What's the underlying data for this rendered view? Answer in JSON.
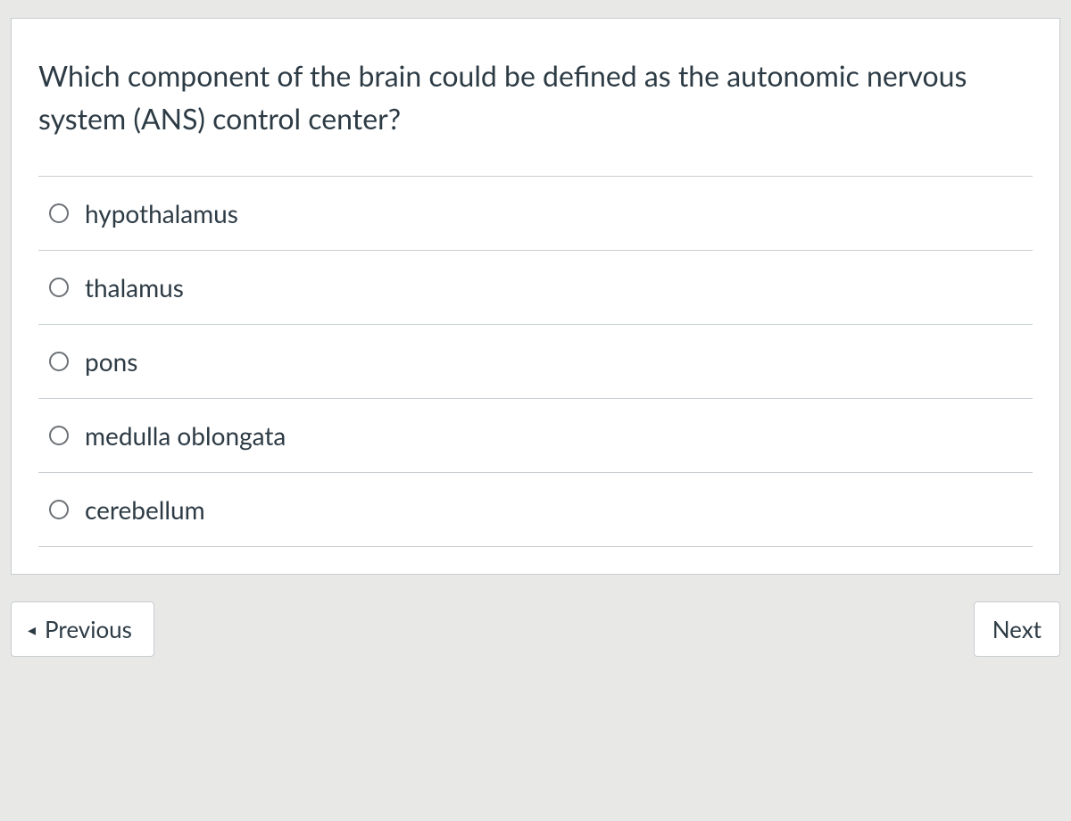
{
  "question": {
    "text": "Which component of the brain could be defined as the autonomic nervous system (ANS) control center?",
    "options": [
      {
        "label": "hypothalamus"
      },
      {
        "label": "thalamus"
      },
      {
        "label": "pons"
      },
      {
        "label": "medulla oblongata"
      },
      {
        "label": "cerebellum"
      }
    ]
  },
  "nav": {
    "previous_label": "Previous",
    "next_label": "Next"
  },
  "colors": {
    "background": "#e8e8e6",
    "card_background": "#ffffff",
    "border": "#c7cdd1",
    "text": "#2d3b45",
    "radio_border": "#6d7176"
  }
}
